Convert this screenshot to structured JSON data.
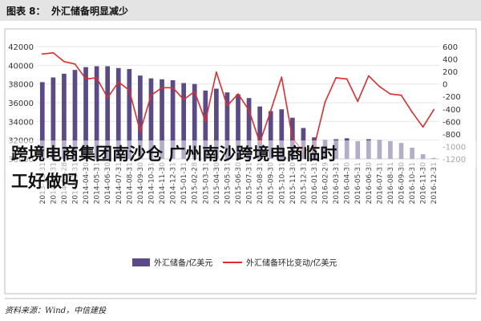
{
  "figure_label": "图表 8：",
  "figure_title": "外汇储备明显减少",
  "source_text": "资料来源：Wind，中信建投",
  "overlay": {
    "line1": "跨境电商集团南沙仓 广州南沙跨境电商临时",
    "line2": "工好做吗"
  },
  "colors": {
    "bar": "#5a4a87",
    "line": "#e32b2b",
    "title_bg": "#e4e4e4",
    "frame": "#bdbdbd",
    "grid": "#e6e6e6"
  },
  "chart_data": {
    "type": "bar",
    "title": "外汇储备明显减少",
    "xlabel": "",
    "ylabel": "",
    "grid": true,
    "legend_position": "bottom",
    "categories": [
      "2013-12-31",
      "2014-01-31",
      "2014-02-28",
      "2014-03-31",
      "2014-04-30",
      "2014-05-31",
      "2014-06-30",
      "2014-07-31",
      "2014-08-31",
      "2014-09-30",
      "2014-10-31",
      "2014-11-30",
      "2014-12-31",
      "2015-01-31",
      "2015-02-28",
      "2015-03-31",
      "2015-04-30",
      "2015-05-31",
      "2015-06-30",
      "2015-07-31",
      "2015-08-31",
      "2015-09-30",
      "2015-10-31",
      "2015-11-30",
      "2015-12-31",
      "2016-01-31",
      "2016-02-29",
      "2016-03-31",
      "2016-04-30",
      "2016-05-31",
      "2016-06-30",
      "2016-07-31",
      "2016-08-31",
      "2016-09-30",
      "2016-10-31",
      "2016-11-30",
      "2016-12-31"
    ],
    "ylim_left": [
      30000,
      42000
    ],
    "yticks_left": [
      30000,
      32000,
      34000,
      36000,
      38000,
      40000,
      42000
    ],
    "ylim_right": [
      -1200,
      600
    ],
    "yticks_right": [
      -1200,
      -1000,
      -800,
      -600,
      -400,
      -200,
      0,
      200,
      400,
      600
    ],
    "series": [
      {
        "name": "外汇储备/亿美元",
        "type": "bar",
        "axis": "left",
        "values": [
          38200,
          38700,
          39100,
          39500,
          39800,
          39900,
          39900,
          39700,
          39600,
          38900,
          38600,
          38500,
          38400,
          38100,
          38000,
          37300,
          37500,
          37100,
          36900,
          36500,
          35600,
          35100,
          35300,
          34400,
          33300,
          32300,
          32000,
          32100,
          32200,
          31900,
          32100,
          32000,
          31900,
          31700,
          31200,
          30500,
          30100
        ]
      },
      {
        "name": "外汇储备环比变动/亿美元",
        "type": "line",
        "axis": "right",
        "values": [
          480,
          500,
          360,
          320,
          80,
          100,
          -220,
          30,
          -100,
          -760,
          -180,
          -60,
          -60,
          -250,
          -120,
          -600,
          190,
          -350,
          -160,
          -420,
          -940,
          -430,
          110,
          -870,
          -1080,
          -1000,
          -290,
          100,
          80,
          -280,
          130,
          -40,
          -160,
          -180,
          -450,
          -690,
          -410
        ]
      }
    ]
  }
}
